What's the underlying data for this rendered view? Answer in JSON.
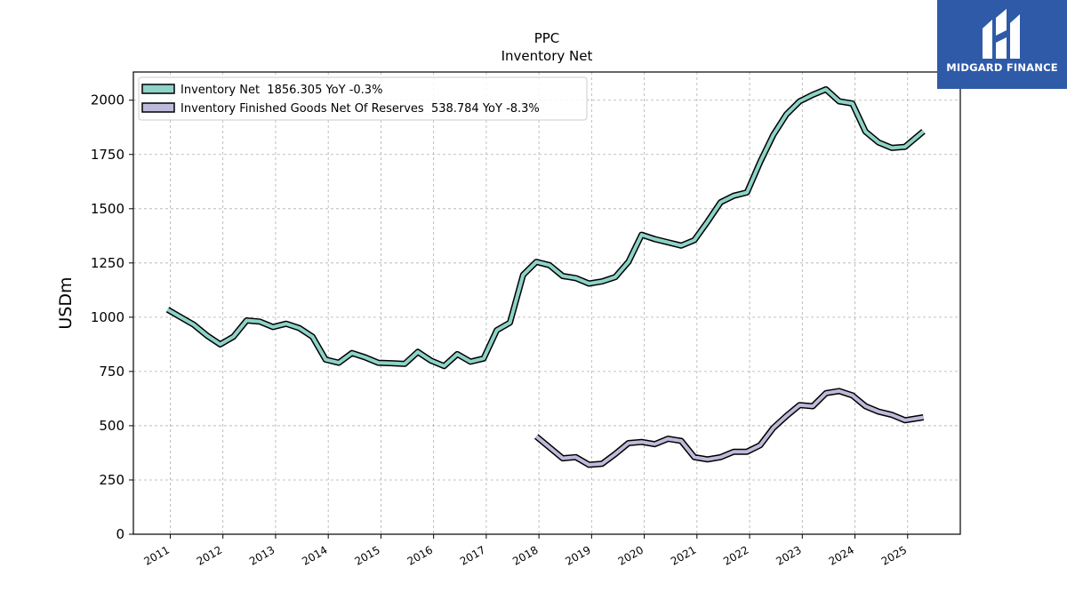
{
  "chart_data": {
    "type": "line",
    "title": "PPC",
    "subtitle": "Inventory Net",
    "ylabel": "USDm",
    "xlabel": "",
    "xlim": [
      2010.3,
      2026.0
    ],
    "ylim": [
      0,
      2130
    ],
    "yticks": [
      0,
      250,
      500,
      750,
      1000,
      1250,
      1500,
      1750,
      2000
    ],
    "xticks": [
      {
        "value": 2011,
        "label": "2011"
      },
      {
        "value": 2012,
        "label": "2012"
      },
      {
        "value": 2013,
        "label": "2013"
      },
      {
        "value": 2014,
        "label": "2014"
      },
      {
        "value": 2015,
        "label": "2015"
      },
      {
        "value": 2016,
        "label": "2016"
      },
      {
        "value": 2017,
        "label": "2017"
      },
      {
        "value": 2018,
        "label": "2018"
      },
      {
        "value": 2019,
        "label": "2019"
      },
      {
        "value": 2020,
        "label": "2020"
      },
      {
        "value": 2021,
        "label": "2021"
      },
      {
        "value": 2022,
        "label": "2022"
      },
      {
        "value": 2023,
        "label": "2023"
      },
      {
        "value": 2024,
        "label": "2024"
      },
      {
        "value": 2025,
        "label": "2025"
      }
    ],
    "grid": true,
    "legend_position": "top-left",
    "series": [
      {
        "name": "Inventory Net  1856.305 YoY -0.3%",
        "color": "#8dd3c7",
        "x": [
          2010.95,
          2011.2,
          2011.45,
          2011.7,
          2011.95,
          2012.2,
          2012.45,
          2012.7,
          2012.95,
          2013.2,
          2013.45,
          2013.7,
          2013.95,
          2014.2,
          2014.45,
          2014.7,
          2014.95,
          2015.2,
          2015.45,
          2015.7,
          2015.95,
          2016.2,
          2016.45,
          2016.7,
          2016.95,
          2017.2,
          2017.45,
          2017.7,
          2017.95,
          2018.2,
          2018.45,
          2018.7,
          2018.95,
          2019.2,
          2019.45,
          2019.7,
          2019.95,
          2020.2,
          2020.45,
          2020.7,
          2020.95,
          2021.2,
          2021.45,
          2021.7,
          2021.95,
          2022.2,
          2022.45,
          2022.7,
          2022.95,
          2023.2,
          2023.45,
          2023.7,
          2023.95,
          2024.2,
          2024.45,
          2024.7,
          2024.95,
          2025.3
        ],
        "y": [
          1035,
          1000,
          965,
          915,
          875,
          910,
          985,
          980,
          955,
          970,
          950,
          910,
          805,
          790,
          835,
          815,
          790,
          788,
          785,
          840,
          800,
          775,
          830,
          795,
          810,
          940,
          975,
          1195,
          1255,
          1240,
          1190,
          1180,
          1155,
          1165,
          1185,
          1255,
          1380,
          1360,
          1345,
          1330,
          1355,
          1440,
          1530,
          1560,
          1575,
          1715,
          1840,
          1935,
          1995,
          2025,
          2050,
          1995,
          1985,
          1855,
          1805,
          1780,
          1785,
          1856.305
        ]
      },
      {
        "name": "Inventory Finished Goods Net Of Reserves  538.784 YoY -8.3%",
        "color": "#bebada",
        "x": [
          2017.95,
          2018.2,
          2018.45,
          2018.7,
          2018.95,
          2019.2,
          2019.45,
          2019.7,
          2019.95,
          2020.2,
          2020.45,
          2020.7,
          2020.95,
          2021.2,
          2021.45,
          2021.7,
          2021.95,
          2022.2,
          2022.45,
          2022.7,
          2022.95,
          2023.2,
          2023.45,
          2023.7,
          2023.95,
          2024.2,
          2024.45,
          2024.7,
          2024.95,
          2025.3
        ],
        "y": [
          450,
          400,
          350,
          355,
          320,
          325,
          370,
          420,
          425,
          415,
          440,
          430,
          355,
          345,
          355,
          380,
          380,
          410,
          490,
          545,
          595,
          590,
          650,
          660,
          640,
          590,
          565,
          550,
          525,
          538.784
        ]
      }
    ]
  },
  "logo": {
    "text": "MIDGARD FINANCE",
    "icon": "midgard-logo-icon",
    "background": "#2e5aa8"
  }
}
